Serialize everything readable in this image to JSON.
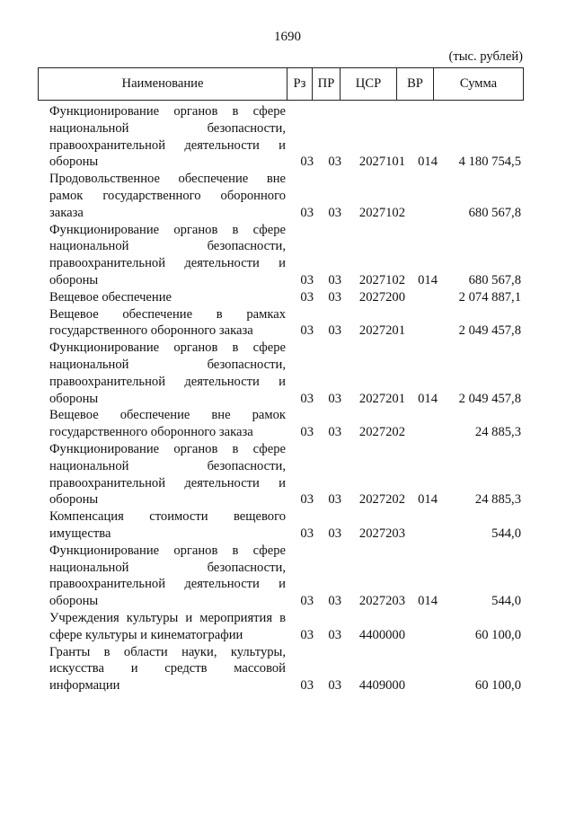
{
  "page_number": "1690",
  "units": "(тыс. рублей)",
  "header": {
    "name": "Наименование",
    "rz": "Рз",
    "pr": "ПР",
    "csr": "ЦСР",
    "vr": "ВР",
    "sum": "Сумма"
  },
  "rows": [
    {
      "lines": [
        "Функционирование органов в сфере",
        "национальной безопасности,",
        "правоохранительной деятельности и",
        "обороны"
      ],
      "rz": "03",
      "pr": "03",
      "csr": "2027101",
      "vr": "014",
      "sum": "4 180 754,5"
    },
    {
      "lines": [
        "Продовольственное обеспечение вне",
        "рамок государственного оборонного",
        "заказа"
      ],
      "rz": "03",
      "pr": "03",
      "csr": "2027102",
      "vr": "",
      "sum": "680 567,8"
    },
    {
      "lines": [
        "Функционирование органов в сфере",
        "национальной безопасности,",
        "правоохранительной деятельности и",
        "обороны"
      ],
      "rz": "03",
      "pr": "03",
      "csr": "2027102",
      "vr": "014",
      "sum": "680 567,8"
    },
    {
      "lines": [
        "Вещевое обеспечение"
      ],
      "rz": "03",
      "pr": "03",
      "csr": "2027200",
      "vr": "",
      "sum": "2 074 887,1"
    },
    {
      "lines": [
        "Вещевое обеспечение в рамках",
        "государственного оборонного заказа"
      ],
      "rz": "03",
      "pr": "03",
      "csr": "2027201",
      "vr": "",
      "sum": "2 049 457,8"
    },
    {
      "lines": [
        "Функционирование органов в сфере",
        "национальной безопасности,",
        "правоохранительной деятельности и",
        "обороны"
      ],
      "rz": "03",
      "pr": "03",
      "csr": "2027201",
      "vr": "014",
      "sum": "2 049 457,8"
    },
    {
      "lines": [
        "Вещевое обеспечение вне рамок",
        "государственного оборонного заказа"
      ],
      "rz": "03",
      "pr": "03",
      "csr": "2027202",
      "vr": "",
      "sum": "24 885,3"
    },
    {
      "lines": [
        "Функционирование органов в сфере",
        "национальной безопасности,",
        "правоохранительной деятельности и",
        "обороны"
      ],
      "rz": "03",
      "pr": "03",
      "csr": "2027202",
      "vr": "014",
      "sum": "24 885,3"
    },
    {
      "lines": [
        "Компенсация стоимости вещевого",
        "имущества"
      ],
      "rz": "03",
      "pr": "03",
      "csr": "2027203",
      "vr": "",
      "sum": "544,0"
    },
    {
      "lines": [
        "Функционирование органов в сфере",
        "национальной безопасности,",
        "правоохранительной деятельности и",
        "обороны"
      ],
      "rz": "03",
      "pr": "03",
      "csr": "2027203",
      "vr": "014",
      "sum": "544,0"
    },
    {
      "lines": [
        "Учреждения культуры и мероприятия в",
        "сфере культуры и кинематографии"
      ],
      "rz": "03",
      "pr": "03",
      "csr": "4400000",
      "vr": "",
      "sum": "60 100,0"
    },
    {
      "lines": [
        "Гранты в области науки, культуры,",
        "искусства и средств массовой",
        "информации"
      ],
      "rz": "03",
      "pr": "03",
      "csr": "4409000",
      "vr": "",
      "sum": "60 100,0"
    }
  ]
}
